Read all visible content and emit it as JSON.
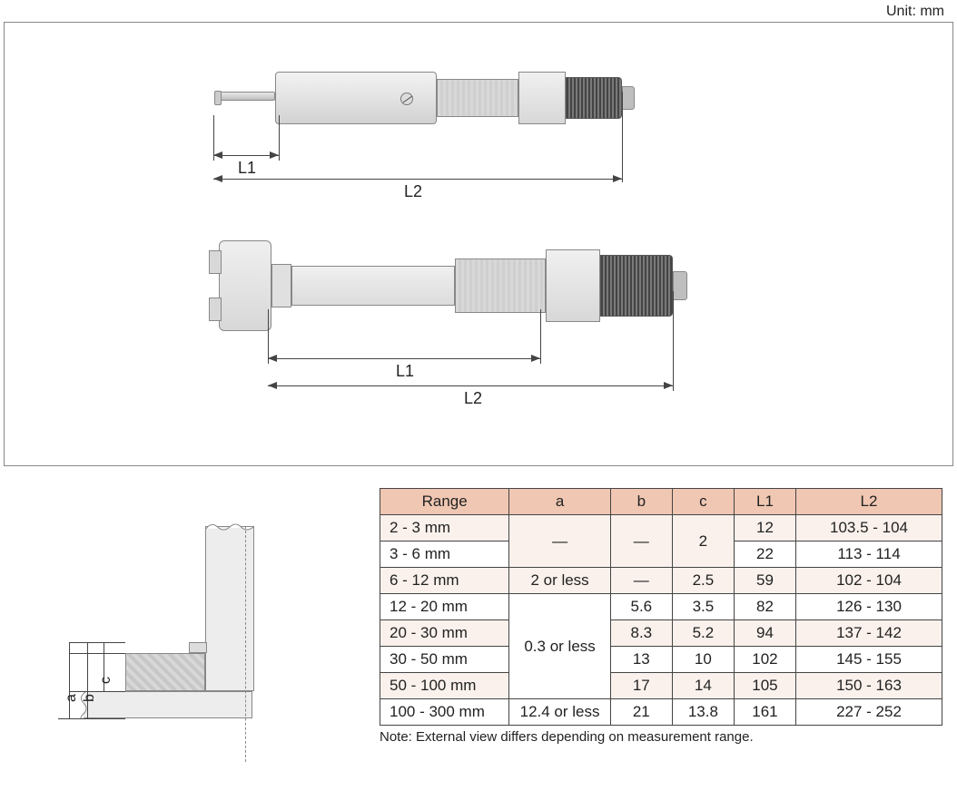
{
  "unit_label": "Unit: mm",
  "dims": {
    "top": {
      "L1": "L1",
      "L2": "L2"
    },
    "mid": {
      "L1": "L1",
      "L2": "L2"
    },
    "section": {
      "a": "a",
      "b": "b",
      "c": "c"
    }
  },
  "table": {
    "headers": [
      "Range",
      "a",
      "b",
      "c",
      "L1",
      "L2"
    ],
    "col_widths_pct": [
      23,
      18,
      11,
      11,
      11,
      26
    ],
    "header_bg": "#f0c7b3",
    "stripe_bg": "#faf1ec",
    "border_color": "#444444",
    "rows": [
      {
        "range": "2 - 3 mm",
        "a": "—",
        "b": "—",
        "c": "2",
        "L1": "12",
        "L2": "103.5 - 104"
      },
      {
        "range": "3 - 6 mm",
        "a": "—",
        "b": "—",
        "c": "2",
        "L1": "22",
        "L2": "113 - 114"
      },
      {
        "range": "6 - 12 mm",
        "a": "2 or less",
        "b": "—",
        "c": "2.5",
        "L1": "59",
        "L2": "102 - 104"
      },
      {
        "range": "12 - 20 mm",
        "a": "0.3 or less",
        "b": "5.6",
        "c": "3.5",
        "L1": "82",
        "L2": "126 - 130"
      },
      {
        "range": "20 - 30 mm",
        "a": "0.3 or less",
        "b": "8.3",
        "c": "5.2",
        "L1": "94",
        "L2": "137 - 142"
      },
      {
        "range": "30 - 50 mm",
        "a": "0.3 or less",
        "b": "13",
        "c": "10",
        "L1": "102",
        "L2": "145 - 155"
      },
      {
        "range": "50 - 100 mm",
        "a": "0.3 or less",
        "b": "17",
        "c": "14",
        "L1": "105",
        "L2": "150 - 163"
      },
      {
        "range": "100 - 300 mm",
        "a": "12.4 or less",
        "b": "21",
        "c": "13.8",
        "L1": "161",
        "L2": "227 - 252"
      }
    ],
    "a_merge": [
      {
        "start": 0,
        "span": 2,
        "value": "—"
      },
      {
        "start": 2,
        "span": 1,
        "value": "2 or less"
      },
      {
        "start": 3,
        "span": 4,
        "value": "0.3 or less"
      },
      {
        "start": 7,
        "span": 1,
        "value": "12.4 or less"
      }
    ],
    "b_merge": [
      {
        "start": 0,
        "span": 2,
        "value": "—"
      }
    ],
    "c_merge": [
      {
        "start": 0,
        "span": 2,
        "value": "2"
      }
    ],
    "note": "Note: External view differs depending on measurement range."
  },
  "colors": {
    "frame_border": "#888888",
    "text": "#222222",
    "dim_line": "#444444",
    "metal_light": "#f0f0f0",
    "metal_dark": "#d8d8d8",
    "ratchet": "#555555"
  }
}
